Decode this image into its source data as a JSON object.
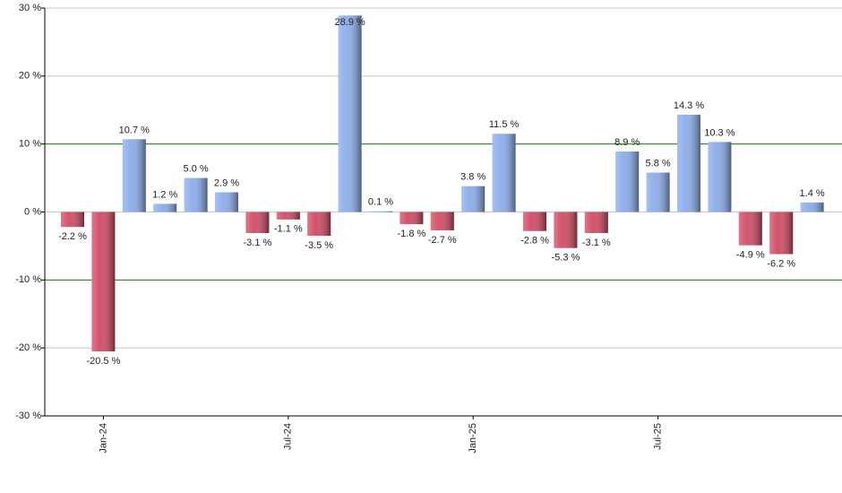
{
  "chart_data": {
    "type": "bar",
    "categories": [
      null,
      "Jan-24",
      null,
      null,
      null,
      null,
      null,
      "Jul-24",
      null,
      null,
      null,
      null,
      null,
      "Jan-25",
      null,
      null,
      null,
      null,
      null,
      "Jul-25",
      null,
      null,
      null,
      null,
      null
    ],
    "values": [
      -2.2,
      -20.5,
      10.7,
      1.2,
      5.0,
      2.9,
      -3.1,
      -1.1,
      -3.5,
      28.9,
      0.1,
      -1.8,
      -2.7,
      3.8,
      11.5,
      -2.8,
      -5.3,
      -3.1,
      8.9,
      5.8,
      14.3,
      10.3,
      -4.9,
      -6.2,
      1.4
    ],
    "value_labels": [
      "-2.2 %",
      "-20.5 %",
      "10.7 %",
      "1.2 %",
      "5.0 %",
      "2.9 %",
      "-3.1 %",
      "-1.1 %",
      "-3.5 %",
      "28.9 %",
      "0.1 %",
      "-1.8 %",
      "-2.7 %",
      "3.8 %",
      "11.5 %",
      "-2.8 %",
      "-5.3 %",
      "-3.1 %",
      "8.9 %",
      "5.8 %",
      "14.3 %",
      "10.3 %",
      "-4.9 %",
      "-6.2 %",
      "1.4 %"
    ],
    "positive_color": "#8aabea",
    "negative_color": "#d04a64",
    "ylim": [
      -30,
      30
    ],
    "yticks": [
      {
        "value": -30,
        "label": "-30 %"
      },
      {
        "value": -20,
        "label": "-20 %"
      },
      {
        "value": -10,
        "label": "-10 %"
      },
      {
        "value": 0,
        "label": "0 %"
      },
      {
        "value": 10,
        "label": "10 %"
      },
      {
        "value": 20,
        "label": "20 %"
      },
      {
        "value": 30,
        "label": "30 %"
      }
    ],
    "grid": true,
    "reference_lines": {
      "values": [
        10,
        -10
      ],
      "color": "#1f7a1f"
    }
  }
}
